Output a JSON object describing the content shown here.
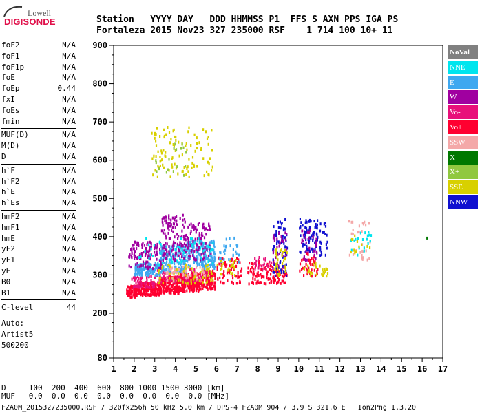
{
  "logo": {
    "lowell": "Lowell",
    "digisonde": "DIGISONDE"
  },
  "header": {
    "line1": "Station   YYYY DAY   DDD HHMMSS P1  FFS S AXN PPS IGA PS",
    "line2": "Fortaleza 2015 Nov23 327 235000 RSF    1 714 100 10+ 11"
  },
  "params": {
    "group1": [
      {
        "name": "foF2",
        "value": "N/A"
      },
      {
        "name": "foF1",
        "value": "N/A"
      },
      {
        "name": "foF1p",
        "value": "N/A"
      },
      {
        "name": "foE",
        "value": "N/A"
      },
      {
        "name": "foEp",
        "value": "0.44"
      },
      {
        "name": "fxI",
        "value": "N/A"
      },
      {
        "name": "foEs",
        "value": "N/A"
      },
      {
        "name": "fmin",
        "value": "N/A"
      }
    ],
    "group2": [
      {
        "name": "MUF(D)",
        "value": "N/A"
      },
      {
        "name": "M(D)",
        "value": "N/A"
      },
      {
        "name": "D",
        "value": "N/A"
      }
    ],
    "group3": [
      {
        "name": "h`F",
        "value": "N/A"
      },
      {
        "name": "h`F2",
        "value": "N/A"
      },
      {
        "name": "h`E",
        "value": "N/A"
      },
      {
        "name": "h`Es",
        "value": "N/A"
      }
    ],
    "group4": [
      {
        "name": "hmF2",
        "value": "N/A"
      },
      {
        "name": "hmF1",
        "value": "N/A"
      },
      {
        "name": "hmE",
        "value": "N/A"
      },
      {
        "name": "yF2",
        "value": "N/A"
      },
      {
        "name": "yF1",
        "value": "N/A"
      },
      {
        "name": "yE",
        "value": "N/A"
      },
      {
        "name": "B0",
        "value": "N/A"
      },
      {
        "name": "B1",
        "value": "N/A"
      }
    ],
    "clevel": {
      "name": "C-level",
      "value": "44"
    },
    "auto": [
      "Auto:",
      "Artist5",
      "500200"
    ]
  },
  "legend": [
    {
      "label": "NoVal",
      "color": "#808080"
    },
    {
      "label": "NNE",
      "color": "#00e5ee"
    },
    {
      "label": "E",
      "color": "#3ea8f0"
    },
    {
      "label": "W",
      "color": "#a000a0"
    },
    {
      "label": "Vo-",
      "color": "#e8107a"
    },
    {
      "label": "Vo+",
      "color": "#ff0030"
    },
    {
      "label": "SSW",
      "color": "#f4a8a8"
    },
    {
      "label": "X-",
      "color": "#007800"
    },
    {
      "label": "X+",
      "color": "#90c840"
    },
    {
      "label": "SSE",
      "color": "#d8d000"
    },
    {
      "label": "NNW",
      "color": "#1010d0"
    }
  ],
  "footer": {
    "line1": "D     100  200  400  600  800 1000 1500 3000 [km]",
    "line2": "MUF   0.0  0.0  0.0  0.0  0.0  0.0  0.0  0.0 [MHz]",
    "line3": "FZA0M_2015327235000.RSF / 320fx256h 50 kHz 5.0 km / DPS-4 FZA0M 904 / 3.9 S 321.6 E   Ion2Png 1.3.20"
  },
  "chart_data": {
    "type": "scatter",
    "xlim": [
      1,
      17
    ],
    "ylim": [
      80,
      900
    ],
    "xticks": [
      1,
      2,
      3,
      4,
      5,
      6,
      7,
      8,
      9,
      10,
      11,
      12,
      13,
      14,
      15,
      16,
      17
    ],
    "yticks": [
      80,
      200,
      300,
      400,
      500,
      600,
      700,
      800,
      900
    ],
    "grid": false,
    "legend_position": "right",
    "clusters": [
      {
        "x": [
          1.6,
          2.2
        ],
        "y": [
          245,
          275
        ],
        "color": "#ff0030",
        "n": 90
      },
      {
        "x": [
          2.2,
          3.2
        ],
        "y": [
          250,
          285
        ],
        "color": "#ff0030",
        "n": 170
      },
      {
        "x": [
          3.2,
          4.2
        ],
        "y": [
          255,
          300
        ],
        "color": "#ff0030",
        "n": 190
      },
      {
        "x": [
          4.2,
          5.2
        ],
        "y": [
          260,
          310
        ],
        "color": "#ff0030",
        "n": 190
      },
      {
        "x": [
          5.2,
          5.9
        ],
        "y": [
          265,
          315
        ],
        "color": "#ff0030",
        "n": 110
      },
      {
        "x": [
          1.8,
          3.0
        ],
        "y": [
          270,
          300
        ],
        "color": "#e8107a",
        "n": 60
      },
      {
        "x": [
          3.0,
          5.6
        ],
        "y": [
          285,
          320
        ],
        "color": "#e8107a",
        "n": 80
      },
      {
        "x": [
          2.0,
          3.2
        ],
        "y": [
          300,
          335
        ],
        "color": "#3ea8f0",
        "n": 120
      },
      {
        "x": [
          3.2,
          4.5
        ],
        "y": [
          310,
          380
        ],
        "color": "#3ea8f0",
        "n": 170
      },
      {
        "x": [
          4.5,
          5.9
        ],
        "y": [
          320,
          395
        ],
        "color": "#3ea8f0",
        "n": 180
      },
      {
        "x": [
          1.7,
          3.3
        ],
        "y": [
          320,
          390
        ],
        "color": "#a000a0",
        "n": 110
      },
      {
        "x": [
          3.3,
          4.5
        ],
        "y": [
          340,
          460
        ],
        "color": "#a000a0",
        "n": 130
      },
      {
        "x": [
          4.5,
          5.7
        ],
        "y": [
          340,
          440
        ],
        "color": "#a000a0",
        "n": 90
      },
      {
        "x": [
          2.2,
          5.8
        ],
        "y": [
          330,
          400
        ],
        "color": "#00e5ee",
        "n": 50
      },
      {
        "x": [
          3.0,
          5.8
        ],
        "y": [
          280,
          330
        ],
        "color": "#d8d000",
        "n": 70
      },
      {
        "x": [
          3.5,
          5.5
        ],
        "y": [
          285,
          325
        ],
        "color": "#f4a8a8",
        "n": 40
      },
      {
        "x": [
          2.8,
          5.8
        ],
        "y": [
          560,
          690
        ],
        "color": "#d8d000",
        "n": 110
      },
      {
        "x": [
          3.0,
          4.5
        ],
        "y": [
          560,
          650
        ],
        "color": "#90c840",
        "n": 20
      },
      {
        "x": [
          6.0,
          7.2
        ],
        "y": [
          280,
          350
        ],
        "color": "#ff0030",
        "n": 70
      },
      {
        "x": [
          6.1,
          7.1
        ],
        "y": [
          330,
          400
        ],
        "color": "#3ea8f0",
        "n": 30
      },
      {
        "x": [
          6.0,
          6.9
        ],
        "y": [
          300,
          345
        ],
        "color": "#d8d000",
        "n": 25
      },
      {
        "x": [
          7.5,
          8.8
        ],
        "y": [
          280,
          340
        ],
        "color": "#ff0030",
        "n": 85
      },
      {
        "x": [
          7.8,
          8.8
        ],
        "y": [
          310,
          350
        ],
        "color": "#e8107a",
        "n": 25
      },
      {
        "x": [
          8.7,
          9.4
        ],
        "y": [
          280,
          320
        ],
        "color": "#ff0030",
        "n": 40
      },
      {
        "x": [
          8.7,
          9.4
        ],
        "y": [
          300,
          450
        ],
        "color": "#1010d0",
        "n": 70
      },
      {
        "x": [
          8.7,
          9.4
        ],
        "y": [
          320,
          420
        ],
        "color": "#a000a0",
        "n": 40
      },
      {
        "x": [
          8.8,
          9.4
        ],
        "y": [
          300,
          370
        ],
        "color": "#d8d000",
        "n": 30
      },
      {
        "x": [
          10.0,
          10.9
        ],
        "y": [
          360,
          450
        ],
        "color": "#1010d0",
        "n": 75
      },
      {
        "x": [
          10.0,
          10.9
        ],
        "y": [
          300,
          360
        ],
        "color": "#ff0030",
        "n": 40
      },
      {
        "x": [
          10.1,
          10.9
        ],
        "y": [
          340,
          420
        ],
        "color": "#a000a0",
        "n": 30
      },
      {
        "x": [
          10.2,
          11.0
        ],
        "y": [
          300,
          340
        ],
        "color": "#d8d000",
        "n": 15
      },
      {
        "x": [
          11.0,
          11.4
        ],
        "y": [
          340,
          440
        ],
        "color": "#1010d0",
        "n": 20
      },
      {
        "x": [
          11.0,
          11.4
        ],
        "y": [
          300,
          320
        ],
        "color": "#d8d000",
        "n": 12
      },
      {
        "x": [
          12.4,
          13.5
        ],
        "y": [
          340,
          450
        ],
        "color": "#f4a8a8",
        "n": 35
      },
      {
        "x": [
          12.5,
          13.5
        ],
        "y": [
          350,
          420
        ],
        "color": "#00e5ee",
        "n": 20
      },
      {
        "x": [
          12.5,
          13.5
        ],
        "y": [
          360,
          410
        ],
        "color": "#d8d000",
        "n": 12
      },
      {
        "x": [
          16.2,
          16.2
        ],
        "y": [
          400,
          400
        ],
        "color": "#007800",
        "n": 1
      }
    ]
  }
}
